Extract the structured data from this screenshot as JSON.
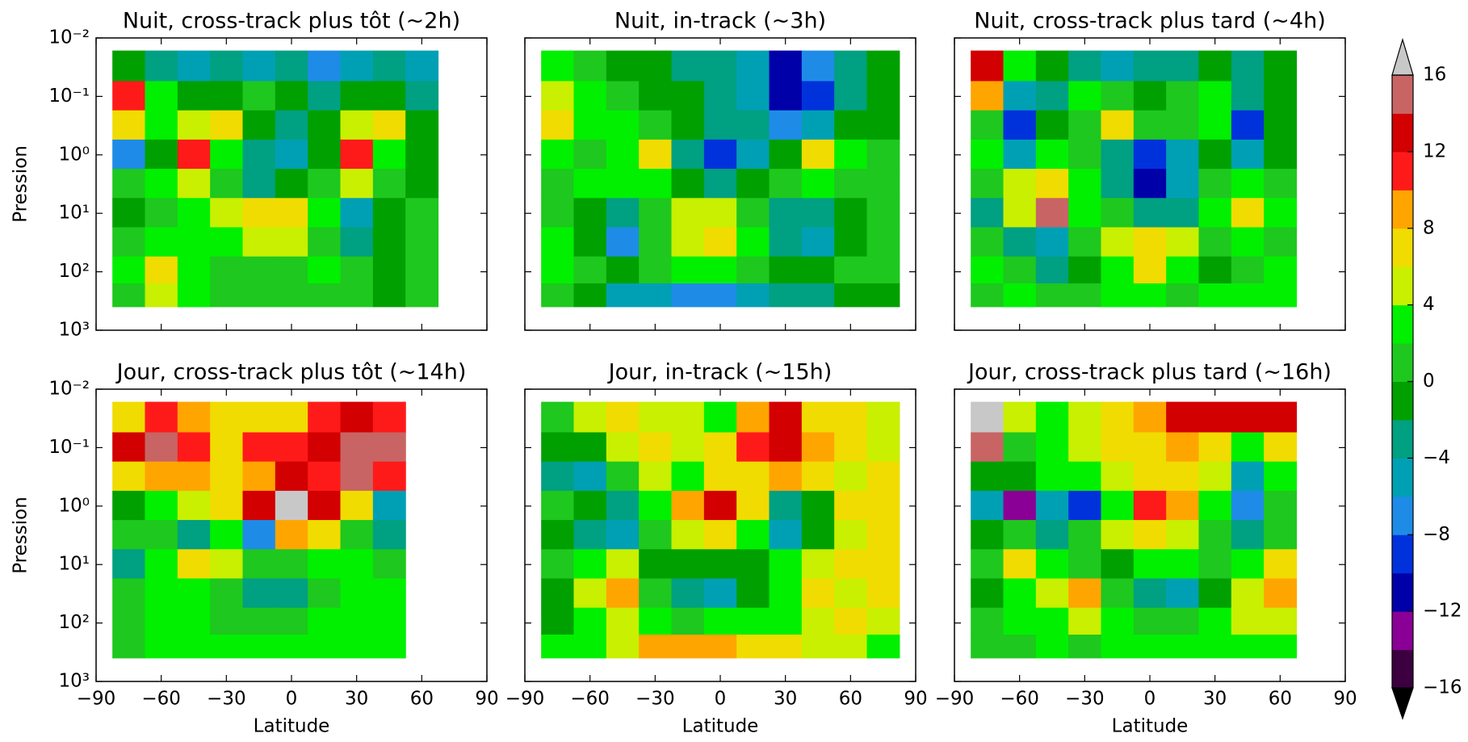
{
  "chart_data": [
    {
      "type": "contour",
      "title": "Nuit, cross-track plus tôt (~2h)",
      "ylabel": "Pression",
      "xlim": [
        -90,
        90
      ],
      "xticks": [
        -90,
        -60,
        -30,
        0,
        30,
        60,
        90
      ],
      "xticklabels": false,
      "ylim": [
        1000,
        0.01
      ],
      "yscale": "log",
      "yticks": [
        {
          "value": 0.01,
          "label": "10⁻²"
        },
        {
          "value": 0.1,
          "label": "10⁻¹"
        },
        {
          "value": 1,
          "label": "10⁰"
        },
        {
          "value": 10,
          "label": "10¹"
        },
        {
          "value": 100,
          "label": "10²"
        },
        {
          "value": 1000,
          "label": "10³"
        }
      ],
      "x": [
        -75,
        -60,
        -45,
        -30,
        -15,
        0,
        15,
        30,
        45,
        60,
        75
      ],
      "y": [
        0.03,
        0.1,
        0.3,
        1,
        3,
        10,
        30,
        100,
        250
      ],
      "z": [
        [
          -2,
          -4,
          -6,
          -4,
          -6,
          -4,
          -8,
          -6,
          -4,
          -6,
          null
        ],
        [
          10,
          2,
          -2,
          -2,
          0,
          -2,
          -4,
          -2,
          -2,
          -4,
          null
        ],
        [
          6,
          2,
          4,
          6,
          -2,
          -4,
          -2,
          4,
          6,
          -2,
          null
        ],
        [
          -8,
          -2,
          10,
          2,
          -4,
          -6,
          -2,
          10,
          2,
          -2,
          null
        ],
        [
          0,
          2,
          4,
          0,
          -4,
          -2,
          0,
          4,
          0,
          -2,
          null
        ],
        [
          -2,
          0,
          2,
          4,
          6,
          6,
          2,
          -6,
          -2,
          0,
          null
        ],
        [
          0,
          2,
          2,
          2,
          4,
          4,
          0,
          -4,
          -2,
          0,
          null
        ],
        [
          2,
          6,
          2,
          0,
          0,
          0,
          2,
          0,
          -2,
          0,
          null
        ],
        [
          0,
          4,
          2,
          0,
          0,
          0,
          0,
          0,
          -2,
          0,
          null
        ]
      ]
    },
    {
      "type": "contour",
      "title": "Nuit, in-track (~3h)",
      "xlim": [
        -90,
        90
      ],
      "xticks": [
        -90,
        -60,
        -30,
        0,
        30,
        60,
        90
      ],
      "xticklabels": false,
      "ylim": [
        1000,
        0.01
      ],
      "yscale": "log",
      "yticks": [
        0.01,
        0.1,
        1,
        10,
        100,
        1000
      ],
      "yticklabels": false,
      "x": [
        -75,
        -60,
        -45,
        -30,
        -15,
        0,
        15,
        30,
        45,
        60,
        75
      ],
      "y": [
        0.03,
        0.1,
        0.3,
        1,
        3,
        10,
        30,
        100,
        250
      ],
      "z": [
        [
          2,
          0,
          -2,
          -2,
          -4,
          -4,
          -6,
          -12,
          -8,
          -4,
          -2
        ],
        [
          4,
          2,
          0,
          -2,
          -2,
          -4,
          -6,
          -12,
          -10,
          -4,
          -2
        ],
        [
          6,
          2,
          2,
          0,
          -2,
          -4,
          -4,
          -8,
          -6,
          -2,
          -2
        ],
        [
          2,
          0,
          2,
          6,
          -4,
          -10,
          -6,
          -2,
          6,
          2,
          0
        ],
        [
          0,
          2,
          2,
          2,
          -2,
          -4,
          -2,
          0,
          2,
          0,
          0
        ],
        [
          0,
          -2,
          -4,
          0,
          4,
          4,
          0,
          -4,
          -4,
          -2,
          0
        ],
        [
          2,
          -2,
          -8,
          0,
          4,
          6,
          2,
          -4,
          -6,
          -2,
          0
        ],
        [
          2,
          0,
          -2,
          0,
          2,
          2,
          0,
          -2,
          -2,
          0,
          0
        ],
        [
          0,
          -2,
          -6,
          -6,
          -8,
          -8,
          -6,
          -4,
          -4,
          -2,
          -2
        ]
      ]
    },
    {
      "type": "contour",
      "title": "Nuit, cross-track plus tard (~4h)",
      "xlim": [
        -90,
        90
      ],
      "xticks": [
        -90,
        -60,
        -30,
        0,
        30,
        60,
        90
      ],
      "xticklabels": false,
      "ylim": [
        1000,
        0.01
      ],
      "yscale": "log",
      "yticks": [
        0.01,
        0.1,
        1,
        10,
        100,
        1000
      ],
      "yticklabels": false,
      "x": [
        -75,
        -60,
        -45,
        -30,
        -15,
        0,
        15,
        30,
        45,
        60,
        75
      ],
      "y": [
        0.03,
        0.1,
        0.3,
        1,
        3,
        10,
        30,
        100,
        250
      ],
      "z": [
        [
          12,
          2,
          -2,
          -4,
          -6,
          -4,
          -4,
          -2,
          -4,
          -2,
          null
        ],
        [
          8,
          -6,
          -4,
          2,
          0,
          -2,
          0,
          2,
          -4,
          -2,
          null
        ],
        [
          0,
          -10,
          -2,
          0,
          6,
          0,
          0,
          2,
          -10,
          -2,
          null
        ],
        [
          2,
          -6,
          2,
          0,
          -4,
          -10,
          -6,
          -2,
          -6,
          -2,
          null
        ],
        [
          0,
          4,
          6,
          2,
          -4,
          -12,
          -6,
          0,
          2,
          0,
          null
        ],
        [
          -4,
          4,
          14,
          2,
          0,
          -4,
          -4,
          2,
          6,
          2,
          null
        ],
        [
          0,
          -4,
          -6,
          0,
          4,
          6,
          4,
          0,
          2,
          0,
          null
        ],
        [
          2,
          0,
          -4,
          -2,
          2,
          6,
          2,
          -2,
          0,
          2,
          null
        ],
        [
          0,
          2,
          0,
          0,
          2,
          2,
          0,
          2,
          2,
          2,
          null
        ]
      ]
    },
    {
      "type": "contour",
      "title": "Jour, cross-track plus tôt (~14h)",
      "xlabel": "Latitude",
      "ylabel": "Pression",
      "xlim": [
        -90,
        90
      ],
      "xticks": [
        {
          "value": -90,
          "label": "−90"
        },
        {
          "value": -60,
          "label": "−60"
        },
        {
          "value": -30,
          "label": "−30"
        },
        0,
        30,
        60,
        90
      ],
      "ylim": [
        1000,
        0.01
      ],
      "yscale": "log",
      "yticks": [
        {
          "value": 0.01,
          "label": "10⁻²"
        },
        {
          "value": 0.1,
          "label": "10⁻¹"
        },
        {
          "value": 1,
          "label": "10⁰"
        },
        {
          "value": 10,
          "label": "10¹"
        },
        {
          "value": 100,
          "label": "10²"
        },
        {
          "value": 1000,
          "label": "10³"
        }
      ],
      "x": [
        -75,
        -60,
        -45,
        -30,
        -15,
        0,
        15,
        30,
        45,
        60,
        75
      ],
      "y": [
        0.03,
        0.1,
        0.3,
        1,
        3,
        10,
        30,
        100,
        250
      ],
      "z": [
        [
          6,
          10,
          8,
          6,
          6,
          6,
          10,
          12,
          10,
          null,
          null
        ],
        [
          12,
          14,
          10,
          6,
          10,
          10,
          12,
          14,
          14,
          null,
          null
        ],
        [
          6,
          8,
          8,
          6,
          8,
          12,
          10,
          14,
          10,
          null,
          null
        ],
        [
          -2,
          2,
          4,
          6,
          12,
          18,
          12,
          6,
          -6,
          null,
          null
        ],
        [
          0,
          0,
          -4,
          2,
          -8,
          8,
          6,
          0,
          -4,
          null,
          null
        ],
        [
          -4,
          2,
          6,
          4,
          0,
          0,
          2,
          2,
          0,
          null,
          null
        ],
        [
          0,
          2,
          2,
          0,
          -4,
          -4,
          0,
          2,
          2,
          null,
          null
        ],
        [
          0,
          2,
          2,
          0,
          0,
          0,
          2,
          2,
          2,
          null,
          null
        ],
        [
          0,
          2,
          2,
          2,
          2,
          2,
          2,
          2,
          2,
          null,
          null
        ]
      ]
    },
    {
      "type": "contour",
      "title": "Jour, in-track (~15h)",
      "xlabel": "Latitude",
      "xlim": [
        -90,
        90
      ],
      "xticks": [
        {
          "value": -90,
          "label": "−90"
        },
        {
          "value": -60,
          "label": "−60"
        },
        {
          "value": -30,
          "label": "−30"
        },
        0,
        30,
        60,
        90
      ],
      "ylim": [
        1000,
        0.01
      ],
      "yscale": "log",
      "yticks": [
        0.01,
        0.1,
        1,
        10,
        100,
        1000
      ],
      "yticklabels": false,
      "x": [
        -75,
        -60,
        -45,
        -30,
        -15,
        0,
        15,
        30,
        45,
        60,
        75
      ],
      "y": [
        0.03,
        0.1,
        0.3,
        1,
        3,
        10,
        30,
        100,
        250
      ],
      "z": [
        [
          0,
          4,
          6,
          4,
          4,
          2,
          8,
          12,
          6,
          6,
          4
        ],
        [
          -2,
          -2,
          4,
          6,
          4,
          6,
          10,
          12,
          8,
          6,
          4
        ],
        [
          -4,
          -6,
          0,
          4,
          2,
          6,
          6,
          8,
          6,
          4,
          6
        ],
        [
          0,
          -2,
          -4,
          2,
          8,
          12,
          6,
          -4,
          -2,
          6,
          6
        ],
        [
          -2,
          -4,
          -6,
          0,
          4,
          6,
          2,
          -6,
          -2,
          4,
          6
        ],
        [
          0,
          2,
          4,
          -2,
          -2,
          -2,
          -2,
          2,
          4,
          6,
          6
        ],
        [
          -2,
          4,
          8,
          0,
          -4,
          -6,
          -2,
          2,
          6,
          4,
          6
        ],
        [
          -2,
          2,
          4,
          2,
          0,
          2,
          2,
          2,
          4,
          6,
          4
        ],
        [
          2,
          2,
          4,
          8,
          8,
          8,
          6,
          6,
          4,
          4,
          2
        ]
      ]
    },
    {
      "type": "contour",
      "title": "Jour, cross-track plus tard (~16h)",
      "xlabel": "Latitude",
      "xlim": [
        -90,
        90
      ],
      "xticks": [
        {
          "value": -90,
          "label": "−90"
        },
        {
          "value": -60,
          "label": "−60"
        },
        {
          "value": -30,
          "label": "−30"
        },
        0,
        30,
        60,
        90
      ],
      "ylim": [
        1000,
        0.01
      ],
      "yscale": "log",
      "yticks": [
        0.01,
        0.1,
        1,
        10,
        100,
        1000
      ],
      "yticklabels": false,
      "x": [
        -75,
        -60,
        -45,
        -30,
        -15,
        0,
        15,
        30,
        45,
        60,
        75
      ],
      "y": [
        0.03,
        0.1,
        0.3,
        1,
        3,
        10,
        30,
        100,
        250
      ],
      "z": [
        [
          18,
          4,
          2,
          4,
          6,
          8,
          12,
          12,
          12,
          12,
          null
        ],
        [
          14,
          0,
          2,
          4,
          6,
          6,
          8,
          6,
          2,
          6,
          null
        ],
        [
          -2,
          -2,
          2,
          2,
          4,
          6,
          6,
          4,
          -6,
          2,
          null
        ],
        [
          -6,
          -14,
          -6,
          -10,
          2,
          10,
          8,
          2,
          -8,
          0,
          null
        ],
        [
          -2,
          0,
          -4,
          0,
          4,
          6,
          4,
          0,
          -4,
          0,
          null
        ],
        [
          0,
          6,
          2,
          0,
          -2,
          2,
          2,
          0,
          2,
          6,
          null
        ],
        [
          -2,
          2,
          4,
          8,
          0,
          -4,
          -6,
          -2,
          4,
          8,
          null
        ],
        [
          0,
          2,
          2,
          4,
          2,
          0,
          0,
          2,
          4,
          4,
          null
        ],
        [
          0,
          0,
          2,
          0,
          2,
          2,
          2,
          2,
          2,
          2,
          null
        ]
      ]
    },
    {
      "type": "colorbar",
      "levels": [
        -16,
        -14,
        -12,
        -10,
        -8,
        -6,
        -4,
        -2,
        0,
        2,
        4,
        6,
        8,
        10,
        12,
        14,
        16
      ],
      "colors": [
        "#3c0040",
        "#8a0096",
        "#0000a8",
        "#0032dc",
        "#1e8ce6",
        "#00a0b4",
        "#00a082",
        "#00a000",
        "#1ec81e",
        "#00f000",
        "#c8f000",
        "#f0dc00",
        "#ffa500",
        "#ff1a1a",
        "#d20000",
        "#c86464"
      ],
      "over_color": "#c8c8c8",
      "under_color": "#000000",
      "ticks": [
        {
          "value": -16,
          "label": "−16"
        },
        {
          "value": -12,
          "label": "−12"
        },
        {
          "value": -8,
          "label": "−8"
        },
        {
          "value": -4,
          "label": "−4"
        },
        0,
        4,
        8,
        12,
        16
      ]
    }
  ]
}
